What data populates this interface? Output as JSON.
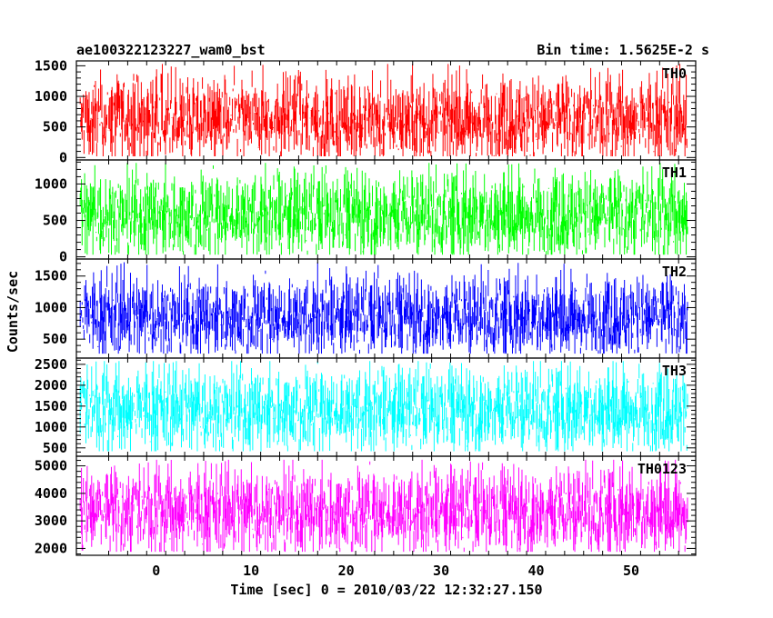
{
  "chart_data": {
    "type": "line",
    "title": "ae100322123227_wam0_bst",
    "subtitle": "Bin time: 1.5625E-2 s",
    "xlabel": "Time [sec] 0 = 2010/03/22 12:32:27.150",
    "ylabel": "Counts/sec",
    "xlim": [
      -8.4,
      56.8
    ],
    "data_x_range": [
      -8.0,
      56.0
    ],
    "x_ticks": [
      0,
      10,
      20,
      30,
      40,
      50
    ],
    "grid": false,
    "legend": "none",
    "panels": [
      {
        "name": "TH0",
        "color": "#ff0000",
        "ylim": [
          -40,
          1580
        ],
        "y_ticks": [
          0,
          500,
          1000,
          1500
        ],
        "summary": {
          "min": 20,
          "q1": 380,
          "median": 620,
          "q3": 860,
          "max": 1530
        }
      },
      {
        "name": "TH1",
        "color": "#00ff00",
        "ylim": [
          -30,
          1330
        ],
        "y_ticks": [
          0,
          500,
          1000
        ],
        "summary": {
          "min": 30,
          "q1": 380,
          "median": 580,
          "q3": 790,
          "max": 1290
        }
      },
      {
        "name": "TH2",
        "color": "#0000ff",
        "ylim": [
          200,
          1770
        ],
        "y_ticks": [
          500,
          1000,
          1500
        ],
        "summary": {
          "min": 270,
          "q1": 640,
          "median": 860,
          "q3": 1080,
          "max": 1720
        }
      },
      {
        "name": "TH3",
        "color": "#00ffff",
        "ylim": [
          300,
          2650
        ],
        "y_ticks": [
          500,
          1000,
          1500,
          2000,
          2500
        ],
        "summary": {
          "min": 420,
          "q1": 1050,
          "median": 1420,
          "q3": 1760,
          "max": 2580
        }
      },
      {
        "name": "TH0123",
        "color": "#ff00ff",
        "ylim": [
          1750,
          5350
        ],
        "y_ticks": [
          2000,
          3000,
          4000,
          5000
        ],
        "summary": {
          "min": 1880,
          "q1": 2800,
          "median": 3350,
          "q3": 3900,
          "max": 5220
        }
      }
    ]
  }
}
